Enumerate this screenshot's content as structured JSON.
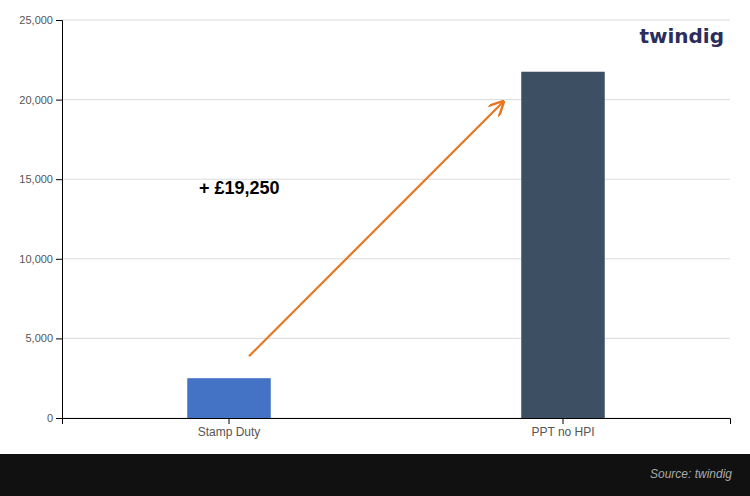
{
  "chart_data": {
    "type": "bar",
    "categories": [
      "Stamp Duty",
      "PPT no HPI"
    ],
    "values": [
      2500,
      21750
    ],
    "colors": [
      "#4472C4",
      "#3D4F63"
    ],
    "ylim": [
      0,
      25000
    ],
    "yticks": [
      0,
      {
        "value": 5000,
        "label": "5,000"
      },
      {
        "value": 10000,
        "label": "10,000"
      },
      {
        "value": 15000,
        "label": "15,000"
      },
      {
        "value": 20000,
        "label": "20,000"
      },
      {
        "value": 25000,
        "label": "25,000"
      }
    ],
    "grid": true,
    "annotations": [
      "+ £19,250",
      "twindig"
    ],
    "source": "Source: twindig"
  }
}
